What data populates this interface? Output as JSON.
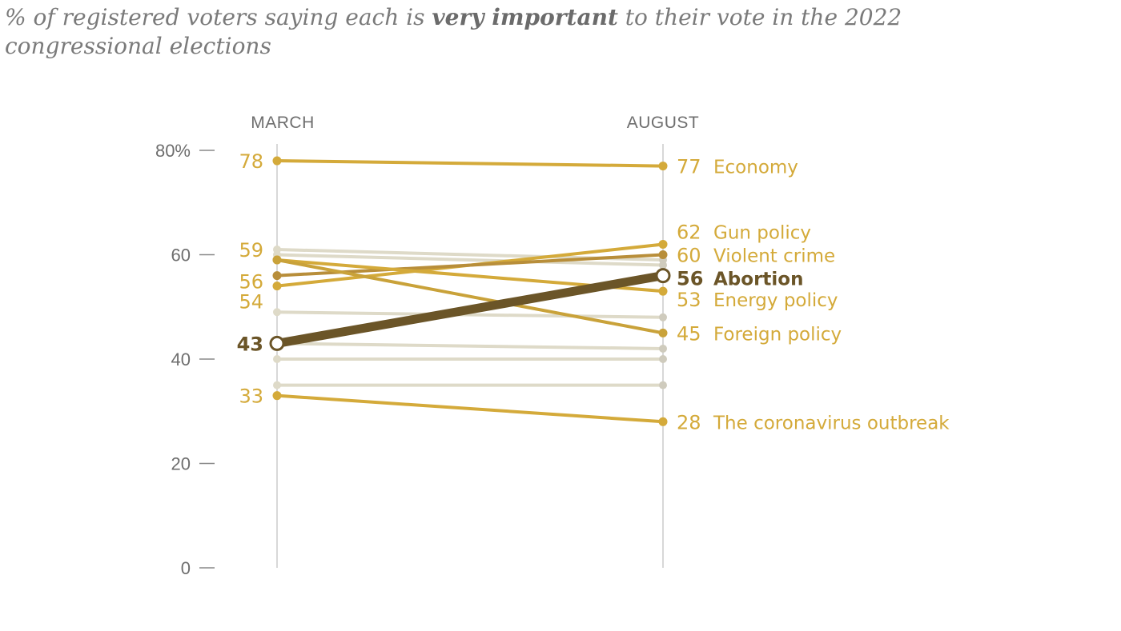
{
  "title": {
    "prefix": "% of registered voters saying each is ",
    "emphasis": "very important",
    "suffix": " to their vote in the 2022 congressional elections"
  },
  "colors": {
    "highlight": "#d4aa3a",
    "highlight_mid": "#c9a23a",
    "highlight_dark": "#b0883a",
    "focus": "#6b5528",
    "muted": "#dedac8",
    "muted_dark": "#cfcbbd",
    "axis": "#cccccc",
    "tick_text": "#6e6e6e"
  },
  "chart_data": {
    "type": "slope",
    "title": "% of registered voters saying each is very important to their vote in the 2022 congressional elections",
    "columns": [
      "MARCH",
      "AUGUST"
    ],
    "ylim": [
      0,
      80
    ],
    "yticks": [
      0,
      20,
      40,
      60,
      80
    ],
    "ytick_labels": [
      "0",
      "20",
      "40",
      "60",
      "80%"
    ],
    "highlighted": [
      {
        "name": "Economy",
        "march": 78,
        "august": 77,
        "march_label": "78",
        "august_label": "77",
        "color": "#d4aa3a"
      },
      {
        "name": "Gun policy",
        "march": 54,
        "august": 62,
        "march_label": "54",
        "august_label": "62",
        "color": "#d4aa3a"
      },
      {
        "name": "Violent crime",
        "march": 56,
        "august": 60,
        "march_label": "56",
        "august_label": "60",
        "color": "#b88e3a"
      },
      {
        "name": "Abortion",
        "march": 43,
        "august": 56,
        "march_label": "43",
        "august_label": "56",
        "color": "#6b5528",
        "focus": true
      },
      {
        "name": "Energy policy",
        "march": 59,
        "august": 53,
        "march_label": "59",
        "august_label": "53",
        "color": "#d4aa3a"
      },
      {
        "name": "Foreign policy",
        "march": 59,
        "august": 45,
        "march_label": "",
        "august_label": "45",
        "color": "#c9a23a"
      },
      {
        "name": "The coronavirus outbreak",
        "march": 33,
        "august": 28,
        "march_label": "33",
        "august_label": "28",
        "color": "#d4aa3a"
      }
    ],
    "other_series": [
      {
        "march": 61,
        "august": 59
      },
      {
        "march": 60,
        "august": 58
      },
      {
        "march": 49,
        "august": 48
      },
      {
        "march": 43,
        "august": 42
      },
      {
        "march": 40,
        "august": 40
      },
      {
        "march": 35,
        "august": 35
      }
    ]
  }
}
